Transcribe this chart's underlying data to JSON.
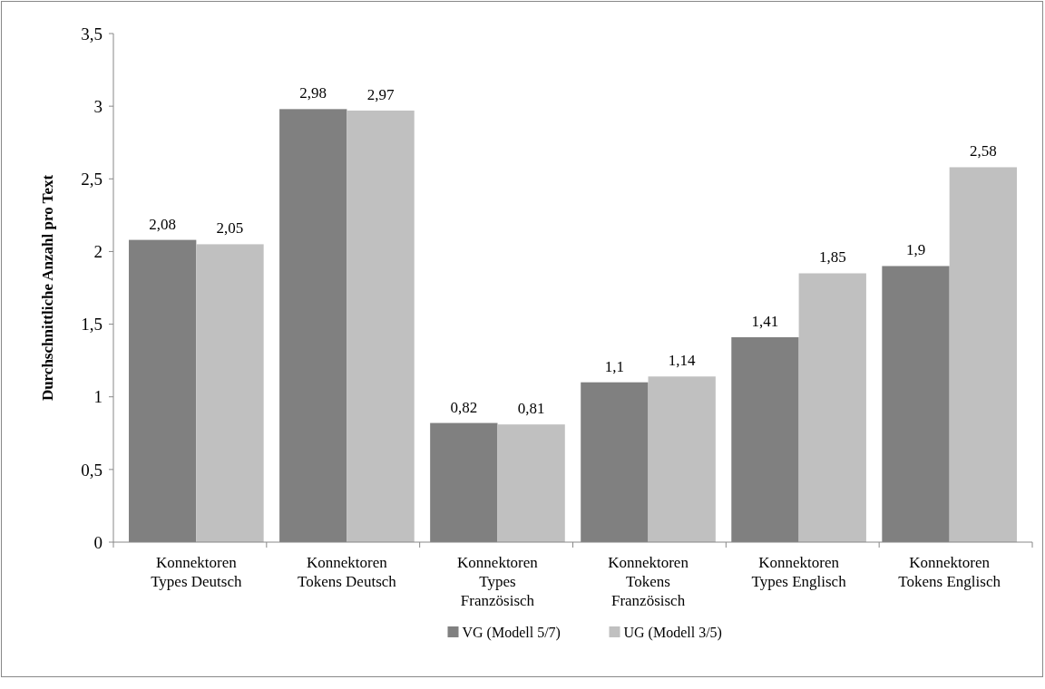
{
  "chart_data": {
    "type": "bar",
    "ylabel": "Durchschnittliche Anzahl pro Text",
    "categories": [
      "Konnektoren Types Deutsch",
      "Konnektoren Tokens Deutsch",
      "Konnektoren Types Französisch",
      "Konnektoren Tokens Französisch",
      "Konnektoren Types Englisch",
      "Konnektoren Tokens Englisch"
    ],
    "series": [
      {
        "name": "VG (Modell 5/7)",
        "color": "#808080",
        "values": [
          2.08,
          2.98,
          0.82,
          1.1,
          1.41,
          1.9
        ],
        "value_labels": [
          "2,08",
          "2,98",
          "0,82",
          "1,1",
          "1,41",
          "1,9"
        ]
      },
      {
        "name": "UG (Modell 3/5)",
        "color": "#c0c0c0",
        "values": [
          2.05,
          2.97,
          0.81,
          1.14,
          1.85,
          2.58
        ],
        "value_labels": [
          "2,05",
          "2,97",
          "0,81",
          "1,14",
          "1,85",
          "2,58"
        ]
      }
    ],
    "ylim": [
      0,
      3.5
    ],
    "yticks": [
      0,
      {
        "value": 0.5,
        "label": "0,5"
      },
      1,
      {
        "value": 1.5,
        "label": "1,5"
      },
      2,
      {
        "value": 2.5,
        "label": "2,5"
      },
      3,
      {
        "value": 3.5,
        "label": "3,5"
      }
    ],
    "legend": "bottom",
    "grid": false
  }
}
